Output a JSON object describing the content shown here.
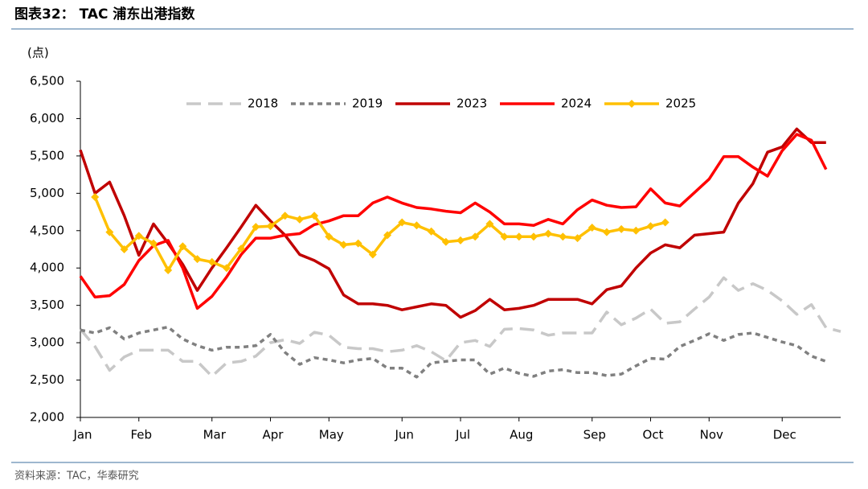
{
  "chart_data": {
    "type": "line",
    "title": "图表32： TAC 浦东出港指数",
    "y_unit": "(点)",
    "source": "资料来源：TAC，华泰研究",
    "categories": [
      "Jan",
      null,
      null,
      null,
      "Feb",
      null,
      null,
      null,
      null,
      "Mar",
      null,
      null,
      null,
      "Apr",
      null,
      null,
      null,
      "May",
      null,
      null,
      null,
      null,
      "Jun",
      null,
      null,
      null,
      "Jul",
      null,
      null,
      null,
      "Aug",
      null,
      null,
      null,
      null,
      "Sep",
      null,
      null,
      null,
      "Oct",
      null,
      null,
      null,
      "Nov",
      null,
      null,
      null,
      null,
      "Dec",
      null,
      null,
      null,
      null
    ],
    "ylim": [
      2000,
      6500
    ],
    "yticks": [
      {
        "value": 2000,
        "label": "2,000"
      },
      {
        "value": 2500,
        "label": "2,500"
      },
      {
        "value": 3000,
        "label": "3,000"
      },
      {
        "value": 3500,
        "label": "3,500"
      },
      {
        "value": 4000,
        "label": "4,000"
      },
      {
        "value": 4500,
        "label": "4,500"
      },
      {
        "value": 5000,
        "label": "5,000"
      },
      {
        "value": 5500,
        "label": "5,500"
      },
      {
        "value": 6000,
        "label": "6,000"
      },
      {
        "value": 6500,
        "label": "6,500"
      }
    ],
    "legend": "top",
    "series": [
      {
        "name": "2018",
        "color": "#c8c8c8",
        "dash": "dashed",
        "values": [
          3180,
          2950,
          2630,
          2810,
          2900,
          2900,
          2900,
          2750,
          2750,
          2550,
          2730,
          2750,
          2820,
          3000,
          3040,
          2990,
          3140,
          3100,
          2940,
          2920,
          2920,
          2880,
          2900,
          2960,
          2880,
          2760,
          3000,
          3030,
          2950,
          3180,
          3190,
          3170,
          3100,
          3130,
          3130,
          3130,
          3410,
          3240,
          3330,
          3450,
          3260,
          3280,
          3450,
          3610,
          3870,
          3700,
          3790,
          3700,
          3560,
          3380,
          3510,
          3200,
          3150
        ]
      },
      {
        "name": "2019",
        "color": "#808080",
        "dash": "dotted",
        "values": [
          3170,
          3130,
          3200,
          3050,
          3130,
          3170,
          3210,
          3050,
          2960,
          2900,
          2940,
          2940,
          2960,
          3110,
          2870,
          2710,
          2800,
          2770,
          2730,
          2770,
          2790,
          2660,
          2660,
          2540,
          2730,
          2750,
          2770,
          2770,
          2580,
          2660,
          2590,
          2550,
          2620,
          2640,
          2600,
          2600,
          2560,
          2580,
          2690,
          2790,
          2780,
          2950,
          3030,
          3120,
          3030,
          3110,
          3130,
          3070,
          3010,
          2960,
          2820,
          2750,
          null
        ]
      },
      {
        "name": "2023",
        "color": "#c00000",
        "dash": "solid",
        "values": [
          5580,
          5000,
          5150,
          4700,
          4170,
          4590,
          4330,
          4050,
          3700,
          4000,
          4270,
          4550,
          4840,
          4630,
          4440,
          4180,
          4100,
          3990,
          3640,
          3520,
          3520,
          3500,
          3440,
          3480,
          3520,
          3500,
          3340,
          3430,
          3580,
          3440,
          3460,
          3500,
          3580,
          3580,
          3580,
          3520,
          3710,
          3760,
          4000,
          4200,
          4310,
          4270,
          4440,
          4460,
          4480,
          4870,
          5130,
          5550,
          5620,
          5860,
          5680,
          5680,
          null
        ]
      },
      {
        "name": "2024",
        "color": "#ff0000",
        "dash": "solid",
        "values": [
          3890,
          3610,
          3630,
          3780,
          4100,
          4300,
          4370,
          4000,
          3460,
          3620,
          3880,
          4180,
          4400,
          4400,
          4440,
          4460,
          4580,
          4630,
          4700,
          4700,
          4870,
          4950,
          4870,
          4810,
          4790,
          4760,
          4740,
          4870,
          4750,
          4590,
          4590,
          4570,
          4650,
          4590,
          4780,
          4910,
          4840,
          4810,
          4820,
          5060,
          4870,
          4830,
          5010,
          5190,
          5490,
          5490,
          5350,
          5230,
          5570,
          5790,
          5710,
          5320,
          null
        ]
      },
      {
        "name": "2025",
        "color": "#ffc000",
        "dash": "solid",
        "marker": "diamond",
        "values": [
          null,
          4950,
          4480,
          4250,
          4430,
          4330,
          3970,
          4290,
          4120,
          4080,
          4000,
          4260,
          4550,
          4560,
          4700,
          4650,
          4700,
          4420,
          4310,
          4330,
          4180,
          4440,
          4610,
          4570,
          4490,
          4350,
          4370,
          4420,
          4590,
          4420,
          4420,
          4420,
          4460,
          4420,
          4400,
          4540,
          4480,
          4520,
          4500,
          4560,
          4610,
          null,
          null,
          null,
          null,
          null,
          null,
          null,
          null,
          null,
          null,
          null,
          null
        ]
      }
    ]
  }
}
